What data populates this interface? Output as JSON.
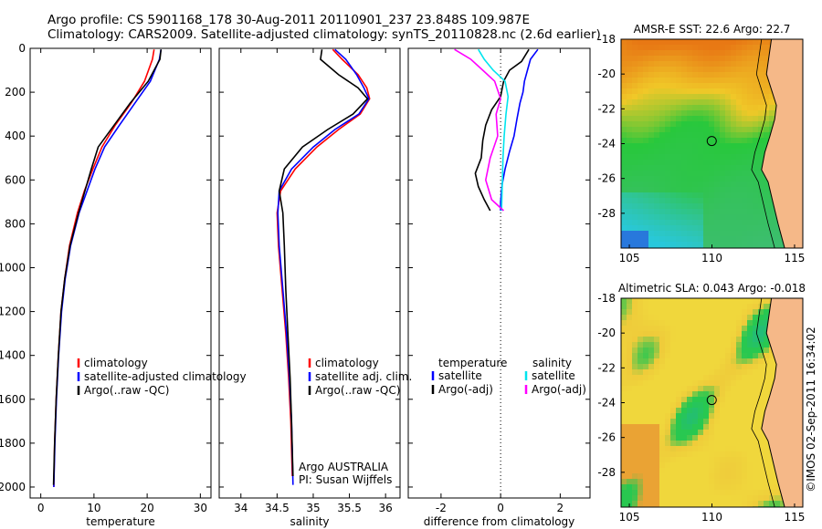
{
  "header": {
    "title_line1": "Argo profile: CS 5901168_178 30-Aug-2011 20110901_237 23.848S 109.987E",
    "title_line2": "Climatology: CARS2009. Satellite-adjusted climatology: synTS_20110828.nc (2.6d earlier)"
  },
  "colors": {
    "climatology": "#ff0000",
    "satellite": "#0000ff",
    "argo": "#000000",
    "salinity_satellite": "#00e5ee",
    "salinity_argo": "#ff00ff",
    "land": "#f5b888"
  },
  "chart_data": [
    {
      "type": "line",
      "name": "temperature-profile",
      "xlabel": "temperature",
      "ylabel": "",
      "xlim": [
        -2,
        32
      ],
      "ylim": [
        2050,
        0
      ],
      "xticks": [
        0,
        10,
        20,
        30
      ],
      "yticks": [
        0,
        200,
        400,
        600,
        800,
        1000,
        1200,
        1400,
        1600,
        1800,
        2000
      ],
      "legend": [
        "climatology",
        "satellite-adjusted climatology",
        "Argo(..raw -QC)"
      ],
      "series": [
        {
          "name": "climatology",
          "x": [
            21.3,
            21.0,
            19.5,
            17.0,
            14.0,
            11.5,
            9.8,
            8.2,
            6.9,
            5.4,
            4.5,
            3.8,
            3.3,
            2.9,
            2.6,
            2.45
          ],
          "y": [
            5,
            50,
            150,
            250,
            350,
            450,
            550,
            650,
            750,
            900,
            1050,
            1200,
            1400,
            1600,
            1800,
            2000
          ]
        },
        {
          "name": "satellite-adjusted climatology",
          "x": [
            22.6,
            22.3,
            20.6,
            17.7,
            14.8,
            12.0,
            10.2,
            8.7,
            7.2,
            5.6,
            4.6,
            3.9,
            3.35,
            2.95,
            2.65,
            2.45
          ],
          "y": [
            5,
            50,
            150,
            250,
            350,
            450,
            550,
            650,
            750,
            900,
            1050,
            1200,
            1400,
            1600,
            1800,
            2000
          ]
        },
        {
          "name": "Argo(..raw -QC)",
          "x": [
            22.6,
            22.4,
            20.2,
            16.8,
            13.8,
            10.8,
            9.5,
            8.3,
            7.1,
            5.5,
            4.5,
            3.8,
            3.3,
            2.9,
            2.6,
            2.4
          ],
          "y": [
            5,
            50,
            150,
            250,
            350,
            450,
            550,
            650,
            750,
            900,
            1050,
            1200,
            1400,
            1600,
            1800,
            1990
          ]
        }
      ]
    },
    {
      "type": "line",
      "name": "salinity-profile",
      "xlabel": "salinity",
      "xlim": [
        33.7,
        36.2
      ],
      "ylim": [
        2050,
        0
      ],
      "xticks": [
        34,
        34.5,
        35,
        35.5,
        36
      ],
      "legend": [
        "climatology",
        "satellite adj. clim.",
        "Argo(..raw -QC)"
      ],
      "annotation_lines": [
        "Argo AUSTRALIA",
        "PI: Susan Wijffels"
      ],
      "series": [
        {
          "name": "climatology",
          "x": [
            35.27,
            35.4,
            35.62,
            35.74,
            35.78,
            35.65,
            35.35,
            35.05,
            34.75,
            34.55,
            34.5,
            34.52,
            34.57,
            34.62,
            34.66,
            34.69,
            34.71
          ],
          "y": [
            5,
            50,
            120,
            180,
            230,
            300,
            370,
            450,
            550,
            650,
            750,
            900,
            1100,
            1300,
            1500,
            1700,
            1950
          ]
        },
        {
          "name": "satellite adj. clim.",
          "x": [
            35.3,
            35.45,
            35.6,
            35.7,
            35.77,
            35.63,
            35.3,
            35.0,
            34.7,
            34.53,
            34.51,
            34.53,
            34.58,
            34.63,
            34.67,
            34.7,
            34.72
          ],
          "y": [
            5,
            50,
            120,
            180,
            230,
            300,
            370,
            450,
            550,
            650,
            750,
            900,
            1100,
            1300,
            1500,
            1700,
            1990
          ]
        },
        {
          "name": "Argo(..raw -QC)",
          "x": [
            35.12,
            35.1,
            35.35,
            35.62,
            35.75,
            35.55,
            35.2,
            34.85,
            34.6,
            34.53,
            34.58,
            34.6,
            34.62,
            34.65,
            34.68,
            34.7,
            34.72
          ],
          "y": [
            5,
            50,
            120,
            180,
            230,
            300,
            370,
            450,
            550,
            650,
            750,
            900,
            1100,
            1300,
            1500,
            1700,
            1950
          ]
        }
      ]
    },
    {
      "type": "line",
      "name": "difference-profile",
      "xlabel": "difference from climatology",
      "xlim": [
        -3.1,
        3.0
      ],
      "ylim": [
        2050,
        0
      ],
      "xticks": [
        -2,
        0,
        2
      ],
      "legend_temperature_title": "temperature",
      "legend_salinity_title": "salinity",
      "legend": [
        "satellite",
        "Argo(-adj)",
        "satellite",
        "Argo(-adj)"
      ],
      "series": [
        {
          "name": "temperature satellite",
          "x": [
            1.25,
            1.0,
            0.9,
            0.8,
            0.75,
            0.65,
            0.55,
            0.45,
            0.3,
            0.15,
            0.05,
            0.0,
            0.0
          ],
          "y": [
            5,
            50,
            100,
            150,
            200,
            250,
            320,
            400,
            470,
            550,
            620,
            700,
            740
          ]
        },
        {
          "name": "temperature Argo(-adj)",
          "x": [
            0.95,
            0.7,
            0.3,
            0.1,
            0.0,
            -0.3,
            -0.5,
            -0.6,
            -0.65,
            -0.85,
            -0.75,
            -0.55,
            -0.35
          ],
          "y": [
            5,
            60,
            100,
            150,
            220,
            280,
            350,
            420,
            500,
            570,
            630,
            690,
            740
          ]
        },
        {
          "name": "salinity satellite",
          "x": [
            -0.75,
            -0.55,
            -0.25,
            0.15,
            0.25,
            0.18,
            0.12,
            0.08,
            0.06,
            0.04,
            0.03
          ],
          "y": [
            5,
            50,
            100,
            150,
            220,
            300,
            400,
            500,
            600,
            700,
            740
          ]
        },
        {
          "name": "salinity Argo(-adj)",
          "x": [
            -1.55,
            -1.0,
            -0.6,
            -0.2,
            0.0,
            -0.15,
            -0.1,
            -0.35,
            -0.5,
            -0.3,
            0.1
          ],
          "y": [
            5,
            50,
            100,
            150,
            230,
            300,
            400,
            500,
            600,
            690,
            740
          ]
        }
      ]
    },
    {
      "type": "heatmap",
      "name": "sst-map",
      "title": "AMSR-E SST: 22.6 Argo: 22.7",
      "xlim": [
        104.5,
        115.5
      ],
      "ylim": [
        -30,
        -18
      ],
      "xticks": [
        105,
        110,
        115
      ],
      "yticks": [
        -18,
        -20,
        -22,
        -24,
        -26,
        -28
      ],
      "profile_marker": {
        "lon": 109.987,
        "lat": -23.848
      }
    },
    {
      "type": "heatmap",
      "name": "sla-map",
      "title": "Altimetric SLA: 0.043 Argo: -0.018",
      "xlim": [
        104.5,
        115.5
      ],
      "ylim": [
        -30,
        -18
      ],
      "xticks": [
        105,
        110,
        115
      ],
      "yticks": [
        -18,
        -20,
        -22,
        -24,
        -26,
        -28
      ],
      "profile_marker": {
        "lon": 109.987,
        "lat": -23.848
      }
    }
  ],
  "footer": {
    "timestamp": "©IMOS 02-Sep-2011 16:34:02"
  }
}
